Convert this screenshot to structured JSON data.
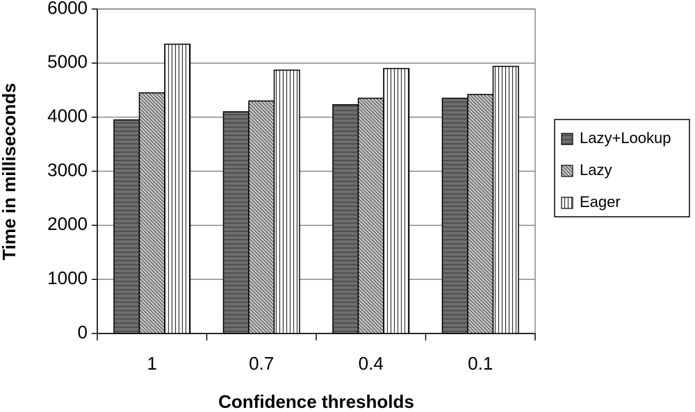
{
  "chart_data": {
    "type": "bar",
    "x_label": "Confidence thresholds",
    "y_label": "Time in milliseconds",
    "categories": [
      "1",
      "0.7",
      "0.4",
      "0.1"
    ],
    "series": [
      {
        "name": "Lazy+Lookup",
        "color": "#6e6e6e",
        "values": [
          3950,
          4100,
          4230,
          4350
        ]
      },
      {
        "name": "Lazy",
        "color": "#c8c8c8",
        "values": [
          4450,
          4300,
          4350,
          4420
        ]
      },
      {
        "name": "Eager",
        "color": "#ffffff",
        "values": [
          5350,
          4870,
          4900,
          4940
        ]
      }
    ],
    "ylim": [
      0,
      6000
    ],
    "yticks": [
      0,
      1000,
      2000,
      3000,
      4000,
      5000,
      6000
    ],
    "grid": true,
    "legend": "right"
  }
}
